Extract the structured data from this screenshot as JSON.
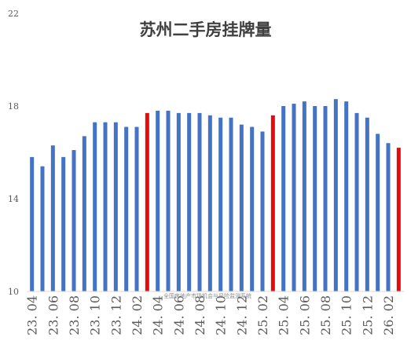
{
  "chart_data": {
    "type": "bar",
    "title": "苏州二手房挂牌量",
    "xlabel": "",
    "ylabel": "",
    "ylim": [
      10,
      22
    ],
    "yticks": [
      10,
      14,
      18,
      22
    ],
    "grid": false,
    "legend": "none",
    "bar_color": "#4472C4",
    "highlight_color": "#E30B0B",
    "categories": [
      "23.04",
      "23.05",
      "23.06",
      "23.07",
      "23.08",
      "23.09",
      "23.10",
      "23.11",
      "23.12",
      "24.01",
      "24.02",
      "24.03",
      "24.04",
      "24.05",
      "24.06",
      "24.07",
      "24.08",
      "24.09",
      "24.10",
      "24.11",
      "24.12",
      "25.01",
      "25.02",
      "25.03",
      "25.04",
      "25.05",
      "25.06",
      "25.07",
      "25.08",
      "25.09",
      "25.10",
      "25.11",
      "25.12",
      "26.01",
      "26.02",
      "26.03"
    ],
    "tick_labels": [
      "23. 04",
      "23. 06",
      "23. 08",
      "23. 10",
      "23. 12",
      "24. 02",
      "24. 04",
      "24. 06",
      "24. 08",
      "24. 10",
      "24. 12",
      "25. 02",
      "25. 04",
      "25. 06",
      "25. 08",
      "25. 10",
      "25. 12",
      "26. 02"
    ],
    "values": [
      15.8,
      15.4,
      16.3,
      15.8,
      16.1,
      16.7,
      17.3,
      17.3,
      17.3,
      17.1,
      17.1,
      17.7,
      17.8,
      17.8,
      17.7,
      17.7,
      17.7,
      17.6,
      17.5,
      17.5,
      17.2,
      17.1,
      16.9,
      17.6,
      18.0,
      18.1,
      18.2,
      18.0,
      18.0,
      18.3,
      18.2,
      17.7,
      17.5,
      16.8,
      16.4,
      16.2
    ],
    "highlight_indices": [
      11,
      23,
      35
    ]
  },
  "watermark": "全国房地产市场机会与风险监测系统"
}
